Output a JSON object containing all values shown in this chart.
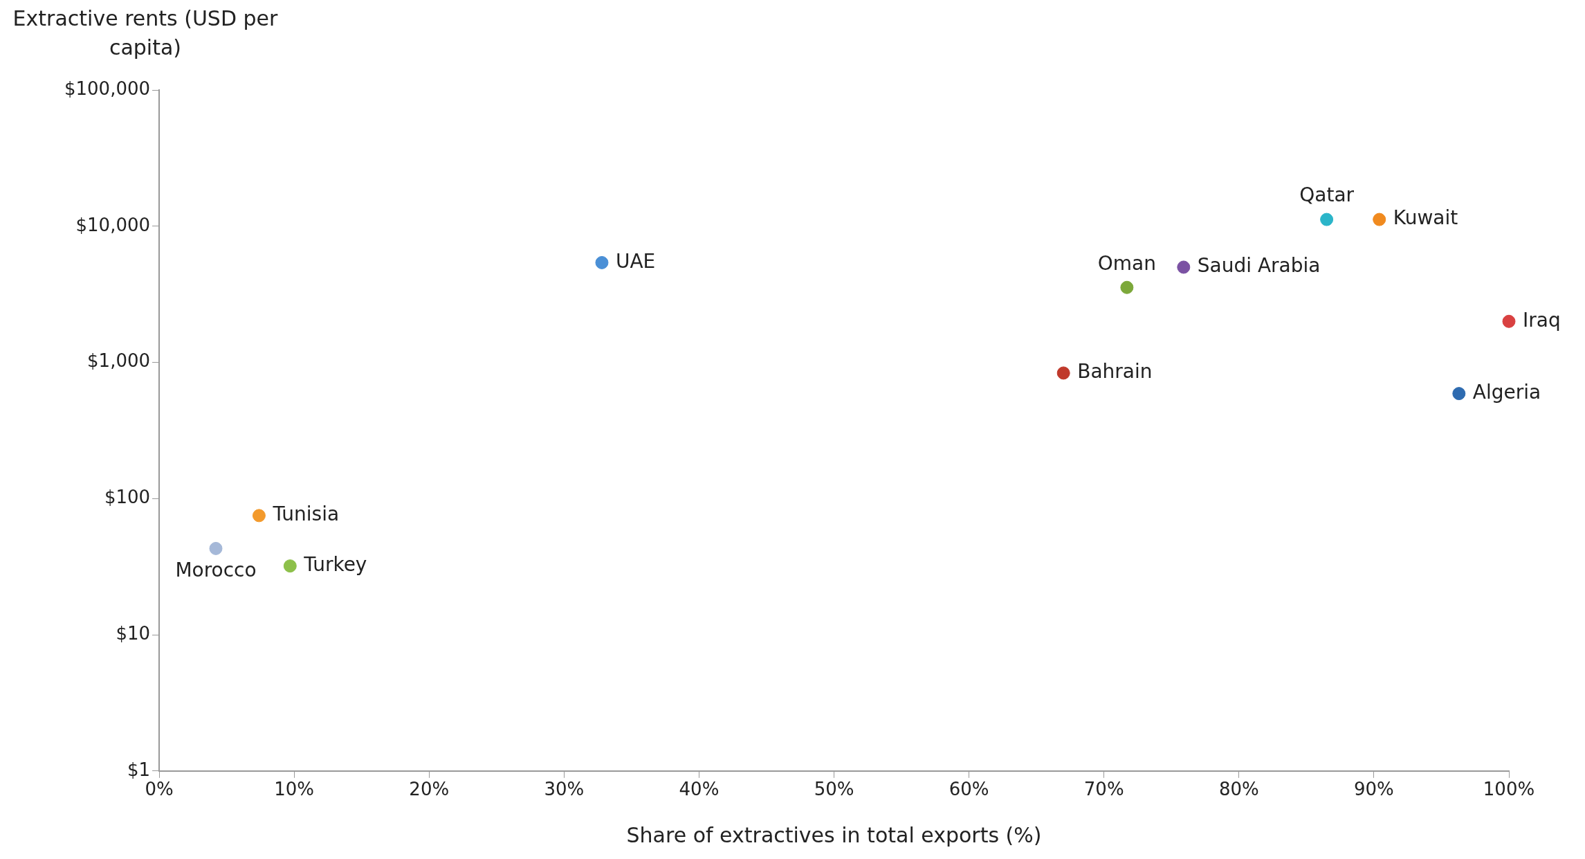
{
  "chart_data": {
    "type": "scatter",
    "xlabel": "Share of extractives in total exports (%)",
    "ylabel": "Extractive rents (USD per capita)",
    "xlim": [
      0,
      100
    ],
    "xticks": [
      {
        "value": 0,
        "label": "0%"
      },
      {
        "value": 10,
        "label": "10%"
      },
      {
        "value": 20,
        "label": "20%"
      },
      {
        "value": 30,
        "label": "30%"
      },
      {
        "value": 40,
        "label": "40%"
      },
      {
        "value": 50,
        "label": "50%"
      },
      {
        "value": 60,
        "label": "60%"
      },
      {
        "value": 70,
        "label": "70%"
      },
      {
        "value": 80,
        "label": "80%"
      },
      {
        "value": 90,
        "label": "90%"
      },
      {
        "value": 100,
        "label": "100%"
      }
    ],
    "ylim": [
      1,
      100000
    ],
    "yticks": [
      {
        "value": 1,
        "label": "$1"
      },
      {
        "value": 10,
        "label": "$10"
      },
      {
        "value": 100,
        "label": "$100"
      },
      {
        "value": 1000,
        "label": "$1,000"
      },
      {
        "value": 10000,
        "label": "$10,000"
      },
      {
        "value": 100000,
        "label": "$100,000"
      }
    ],
    "log": "y",
    "grid": false,
    "legend": false,
    "marker": "circle",
    "series": [
      {
        "name": "UAE",
        "color": "#4a8fd6",
        "x": [
          32.8
        ],
        "values": [
          5400
        ]
      },
      {
        "name": "Qatar",
        "color": "#2bb5c9",
        "x": [
          86.5
        ],
        "values": [
          11200
        ]
      },
      {
        "name": "Kuwait",
        "color": "#f08a1f",
        "x": [
          90.4
        ],
        "values": [
          11200
        ]
      },
      {
        "name": "Saudi Arabia",
        "color": "#7b52a3",
        "x": [
          75.9
        ],
        "values": [
          5000
        ]
      },
      {
        "name": "Oman",
        "color": "#7ca83a",
        "x": [
          71.7
        ],
        "values": [
          3550
        ]
      },
      {
        "name": "Iraq",
        "color": "#d94141",
        "x": [
          100
        ],
        "values": [
          2000
        ]
      },
      {
        "name": "Bahrain",
        "color": "#c0392b",
        "x": [
          67.0
        ],
        "values": [
          835
        ]
      },
      {
        "name": "Algeria",
        "color": "#2e6bb0",
        "x": [
          96.3
        ],
        "values": [
          590
        ]
      },
      {
        "name": "Tunisia",
        "color": "#f39a2c",
        "x": [
          7.4
        ],
        "values": [
          75
        ]
      },
      {
        "name": "Morocco",
        "color": "#a5b8d8",
        "x": [
          4.2
        ],
        "values": [
          43
        ]
      },
      {
        "name": "Turkey",
        "color": "#8dc04a",
        "x": [
          9.7
        ],
        "values": [
          32
        ]
      }
    ]
  }
}
